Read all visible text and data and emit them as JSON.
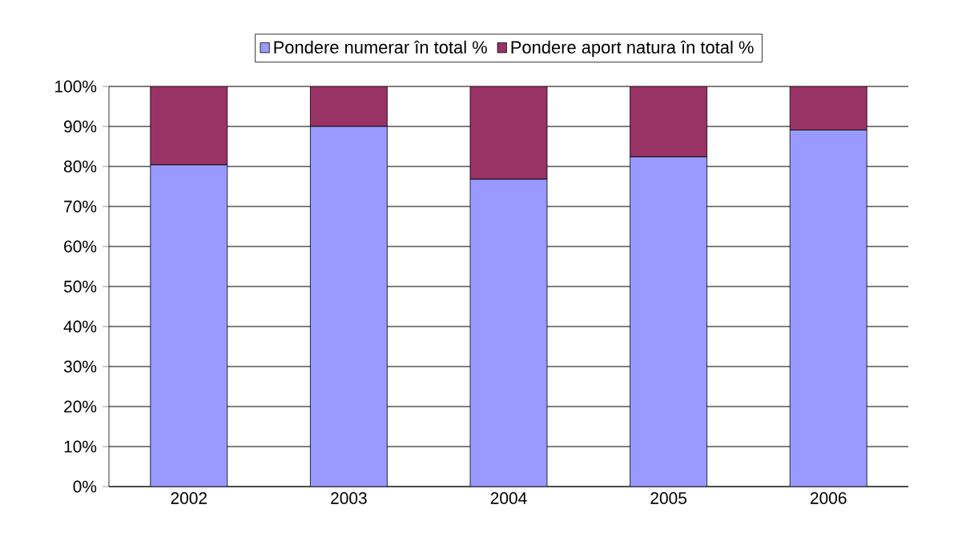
{
  "chart_data": {
    "type": "bar",
    "stacked": true,
    "categories": [
      "2002",
      "2003",
      "2004",
      "2005",
      "2006"
    ],
    "series": [
      {
        "name": "Pondere numerar în total %",
        "color": "#9999ff",
        "values": [
          80.4,
          90.0,
          76.8,
          82.4,
          89.1
        ]
      },
      {
        "name": "Pondere aport natura în total %",
        "color": "#993366",
        "values": [
          19.6,
          10.0,
          23.2,
          17.6,
          10.9
        ]
      }
    ],
    "ylim": [
      0,
      100
    ],
    "yticks": [
      {
        "value": 0,
        "label": "0%"
      },
      {
        "value": 10,
        "label": "10%"
      },
      {
        "value": 20,
        "label": "20%"
      },
      {
        "value": 30,
        "label": "30%"
      },
      {
        "value": 40,
        "label": "40%"
      },
      {
        "value": 50,
        "label": "50%"
      },
      {
        "value": 60,
        "label": "60%"
      },
      {
        "value": 70,
        "label": "70%"
      },
      {
        "value": 80,
        "label": "80%"
      },
      {
        "value": 90,
        "label": "90%"
      },
      {
        "value": 100,
        "label": "100%"
      }
    ],
    "grid": "y",
    "legend": "top"
  }
}
